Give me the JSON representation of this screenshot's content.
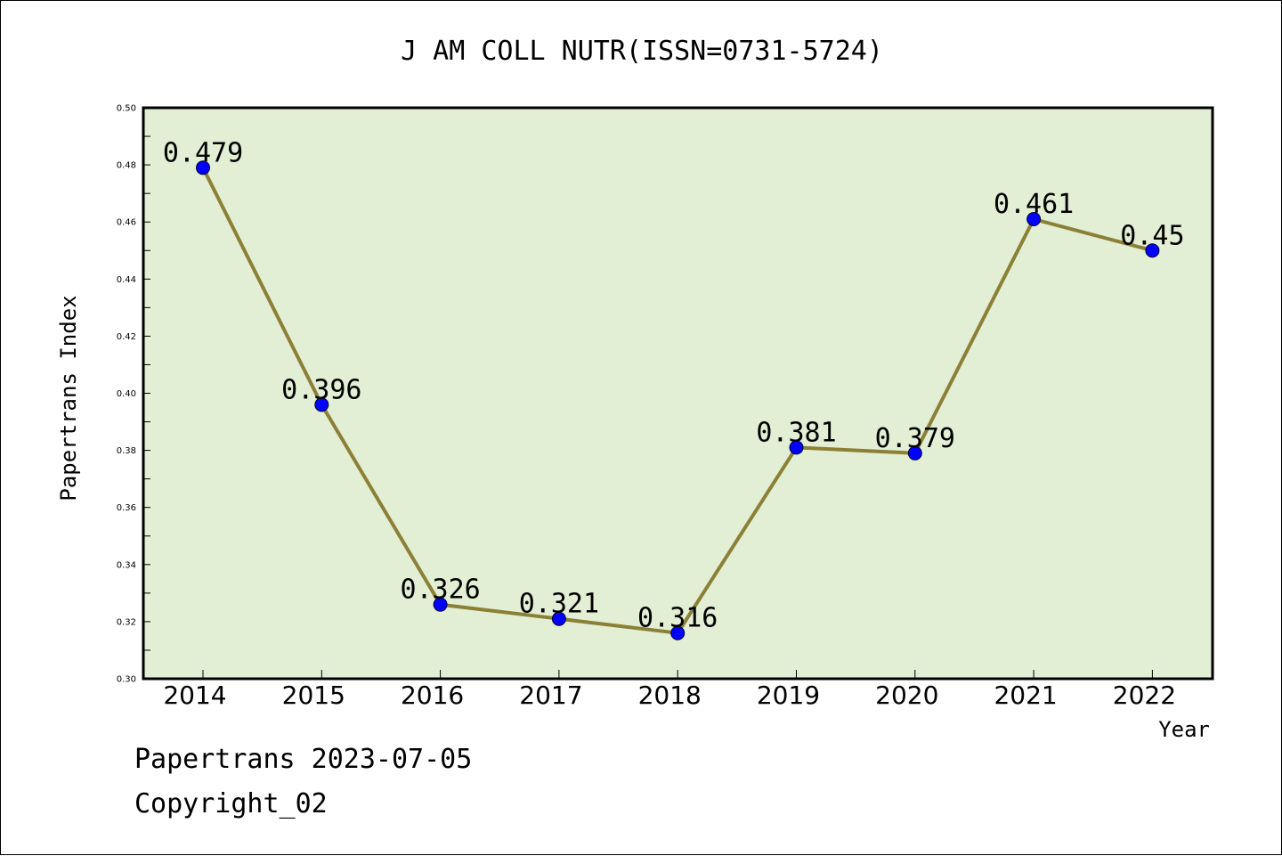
{
  "chart_data": {
    "type": "line",
    "title": "J AM COLL NUTR(ISSN=0731-5724)",
    "xlabel": "Year",
    "ylabel": "Papertrans Index",
    "categories": [
      "2014",
      "2015",
      "2016",
      "2017",
      "2018",
      "2019",
      "2020",
      "2021",
      "2022"
    ],
    "series": [
      {
        "values": [
          0.479,
          0.396,
          0.326,
          0.321,
          0.316,
          0.381,
          0.379,
          0.461,
          0.45
        ],
        "labels": [
          "0.479",
          "0.396",
          "0.326",
          "0.321",
          "0.316",
          "0.381",
          "0.379",
          "0.461",
          "0.45"
        ]
      }
    ],
    "ylim": [
      0.3,
      0.5
    ],
    "yticks": [
      "0.30",
      "0.32",
      "0.34",
      "0.36",
      "0.38",
      "0.40",
      "0.42",
      "0.44",
      "0.46",
      "0.48",
      "0.50"
    ],
    "grid": false,
    "colors": {
      "plot_background": "#e2efd5",
      "line": "#8b8035",
      "marker": "#0000ff"
    }
  },
  "footer": {
    "line1": "Papertrans 2023-07-05",
    "line2": "Copyright_02"
  }
}
